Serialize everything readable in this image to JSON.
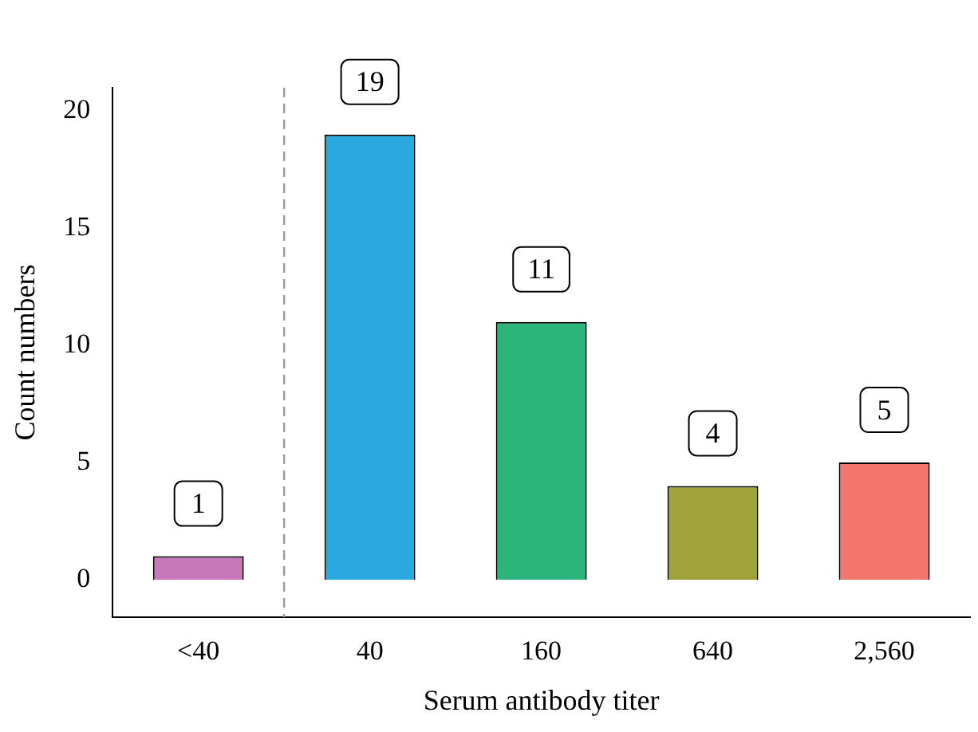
{
  "chart_data": {
    "type": "bar",
    "xlabel": "Serum antibody titer",
    "ylabel": "Count numbers",
    "categories": [
      "<40",
      "40",
      "160",
      "640",
      "2,560"
    ],
    "values": [
      1,
      19,
      11,
      4,
      5
    ],
    "colors": [
      "#c678b8",
      "#2aa8e0",
      "#2bb57a",
      "#a0a33a",
      "#f4756c"
    ],
    "ylim": [
      -1.6,
      21
    ],
    "yticks": [
      0,
      5,
      10,
      15,
      20
    ],
    "grid": false,
    "legend": false,
    "data_labels": true
  }
}
